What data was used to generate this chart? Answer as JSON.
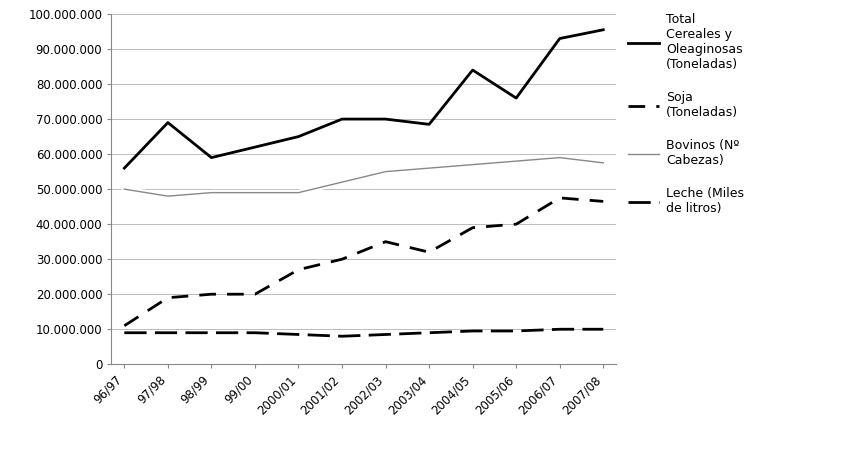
{
  "years": [
    "96/97",
    "97/98",
    "98/99",
    "99/00",
    "2000/01",
    "2001/02",
    "2002/03",
    "2003/04",
    "2004/05",
    "2005/06",
    "2006/07",
    "2007/08"
  ],
  "total_cereales": [
    56000000,
    69000000,
    59000000,
    62000000,
    65000000,
    70000000,
    70000000,
    68500000,
    84000000,
    76000000,
    93000000,
    95500000
  ],
  "soja": [
    11000000,
    19000000,
    20000000,
    20000000,
    27000000,
    30000000,
    35000000,
    32000000,
    39000000,
    40000000,
    47500000,
    46500000
  ],
  "bovinos": [
    50000000,
    48000000,
    49000000,
    49000000,
    49000000,
    52000000,
    55000000,
    56000000,
    57000000,
    58000000,
    59000000,
    57500000
  ],
  "leche": [
    9000000,
    9000000,
    9000000,
    9000000,
    8500000,
    8000000,
    8500000,
    9000000,
    9500000,
    9500000,
    10000000,
    10000000
  ],
  "ylim": [
    0,
    100000000
  ],
  "yticks": [
    0,
    10000000,
    20000000,
    30000000,
    40000000,
    50000000,
    60000000,
    70000000,
    80000000,
    90000000,
    100000000
  ],
  "legend_labels": [
    "Total\nCereales y\nOleaginosas\n(Toneladas)",
    "Soja\n(Toneladas)",
    "Bovinos (Nº\nCabezas)",
    "Leche (Miles\nde litros)"
  ],
  "background_color": "#ffffff",
  "grid_color": "#bbbbbb"
}
